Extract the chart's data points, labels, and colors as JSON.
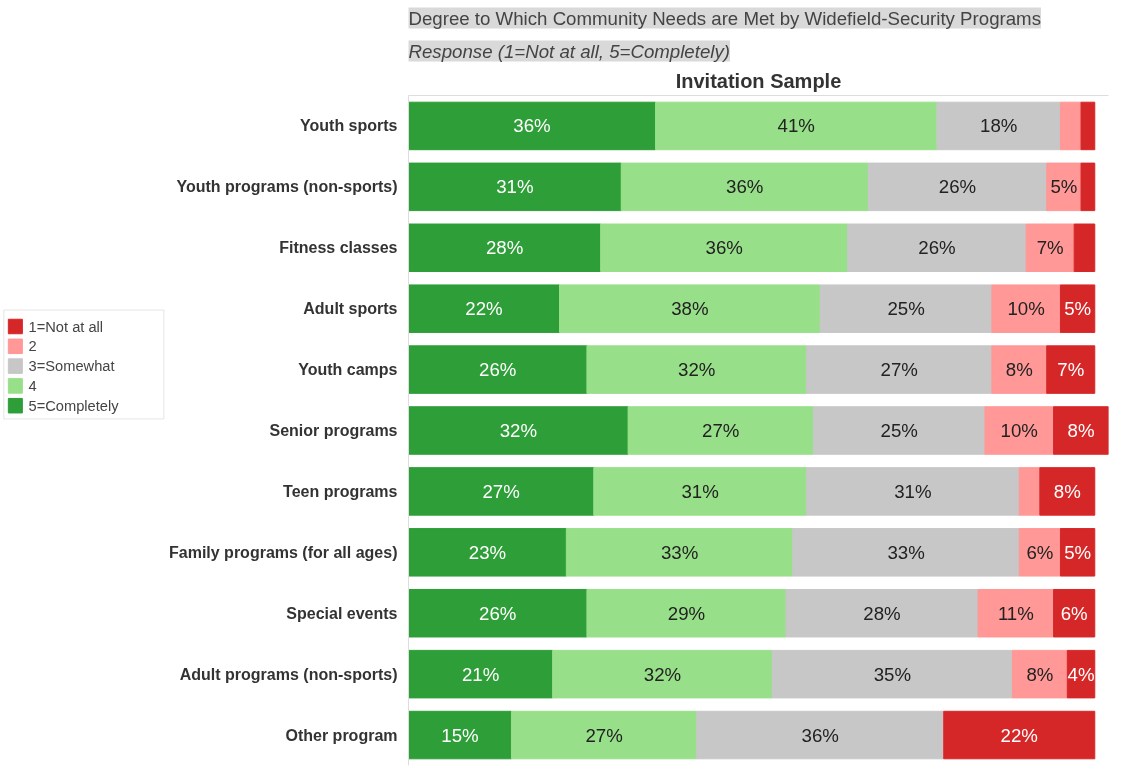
{
  "chart_data": {
    "type": "bar",
    "orientation": "horizontal",
    "stacked": true,
    "title": "Degree to Which Community Needs are Met by Widefield-Security Programs",
    "subtitle": "Response (1=Not at all, 5=Completely)",
    "xlabel": "Invitation Sample",
    "categories": [
      "Youth sports",
      "Youth programs (non-sports)",
      "Fitness classes",
      "Adult sports",
      "Youth camps",
      "Senior programs",
      "Teen programs",
      "Family programs (for all ages)",
      "Special events",
      "Adult programs (non-sports)",
      "Other program"
    ],
    "series": [
      {
        "name": "5=Completely",
        "color": "#2e9e38",
        "values": [
          36,
          31,
          28,
          22,
          26,
          32,
          27,
          23,
          26,
          21,
          15
        ],
        "value_labels": [
          "36%",
          "31%",
          "28%",
          "22%",
          "26%",
          "32%",
          "27%",
          "23%",
          "26%",
          "21%",
          "15%"
        ]
      },
      {
        "name": "4",
        "color": "#98df8a",
        "values": [
          41,
          36,
          36,
          38,
          32,
          27,
          31,
          33,
          29,
          32,
          27
        ],
        "value_labels": [
          "41%",
          "36%",
          "36%",
          "38%",
          "32%",
          "27%",
          "31%",
          "33%",
          "29%",
          "32%",
          "27%"
        ]
      },
      {
        "name": "3=Somewhat",
        "color": "#c7c7c7",
        "values": [
          18,
          26,
          26,
          25,
          27,
          25,
          31,
          33,
          28,
          35,
          36
        ],
        "value_labels": [
          "18%",
          "26%",
          "26%",
          "25%",
          "27%",
          "25%",
          "31%",
          "33%",
          "28%",
          "35%",
          "36%"
        ]
      },
      {
        "name": "2",
        "color": "#ff9896",
        "values": [
          3,
          5,
          7,
          10,
          8,
          10,
          3,
          6,
          11,
          8,
          0
        ],
        "value_labels": [
          null,
          "5%",
          "7%",
          "10%",
          "8%",
          "10%",
          null,
          "6%",
          "11%",
          "8%",
          null
        ]
      },
      {
        "name": "1=Not at all",
        "color": "#d62728",
        "values": [
          2,
          2,
          3,
          5,
          7,
          8,
          8,
          5,
          6,
          4,
          22
        ],
        "value_labels": [
          null,
          null,
          null,
          "5%",
          "7%",
          "8%",
          "8%",
          "5%",
          "6%",
          "4%",
          "22%"
        ]
      }
    ],
    "legend": "left",
    "grid": false
  }
}
